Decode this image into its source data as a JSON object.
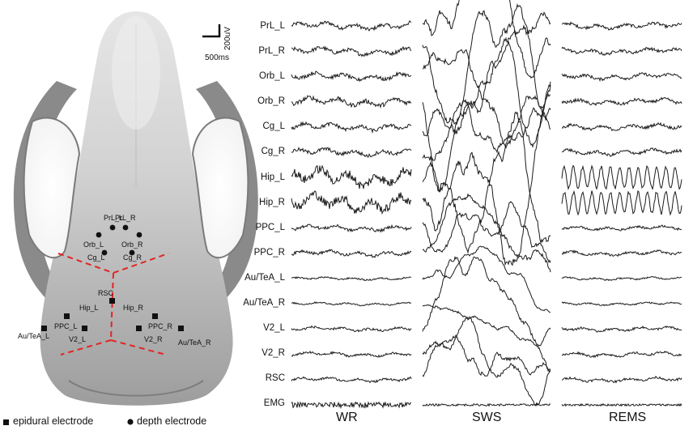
{
  "channels": [
    "PrL_L",
    "PrL_R",
    "Orb_L",
    "Orb_R",
    "Cg_L",
    "Cg_R",
    "Hip_L",
    "Hip_R",
    "PPC_L",
    "PPC_R",
    "Au/TeA_L",
    "Au/TeA_R",
    "V2_L",
    "V2_R",
    "RSC",
    "EMG"
  ],
  "states": [
    "WR",
    "SWS",
    "REMS"
  ],
  "scale": {
    "time": "500ms",
    "amplitude": "200uV"
  },
  "legend": {
    "epidural": "epidural electrode",
    "depth": "depth electrode"
  },
  "electrodes": {
    "depth": [
      "PrL_L",
      "PrL_R",
      "Orb_L",
      "Orb_R",
      "Cg_L",
      "Cg_R"
    ],
    "epidural": [
      "RSC",
      "Hip_L",
      "Hip_R",
      "PPC_L",
      "PPC_R",
      "V2_L",
      "V2_R",
      "Au/TeA_L",
      "Au/TeA_R"
    ]
  },
  "colors": {
    "trace": "#1a1a1a",
    "boundary": "#e32424",
    "skull": "#c9c9c9"
  }
}
